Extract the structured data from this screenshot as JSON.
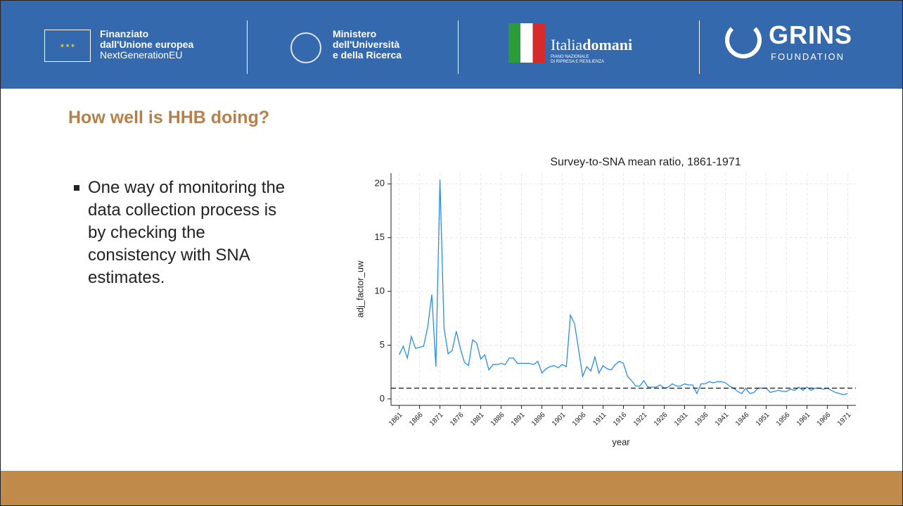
{
  "header": {
    "eu": [
      "Finanziato",
      "dall'Unione europea",
      "NextGenerationEU"
    ],
    "ministry": [
      "Ministero",
      "dell'Università",
      "e della Ricerca"
    ],
    "italiadomani": {
      "light": "Italia",
      "bold": "domani",
      "sub": [
        "PIANO NAZIONALE",
        "DI RIPRESA E RESILIENZA"
      ]
    },
    "grins": {
      "name": "GRINS",
      "sub": "FOUNDATION"
    }
  },
  "slide": {
    "title": "How well is HHB doing?",
    "bullet": "One way of monitoring the data collection process is by checking the consistency with SNA estimates."
  },
  "chart_data": {
    "type": "line",
    "title": "Survey-to-SNA mean ratio, 1861-1971",
    "xlabel": "year",
    "ylabel": "adj_factor_uw",
    "color": "#2b8ce6",
    "grid": true,
    "hline": 1,
    "x": [
      1861,
      1862,
      1863,
      1864,
      1865,
      1866,
      1867,
      1868,
      1869,
      1870,
      1871,
      1872,
      1873,
      1874,
      1875,
      1876,
      1877,
      1878,
      1879,
      1880,
      1881,
      1882,
      1883,
      1884,
      1885,
      1886,
      1887,
      1888,
      1889,
      1890,
      1891,
      1892,
      1893,
      1894,
      1895,
      1896,
      1897,
      1898,
      1899,
      1900,
      1901,
      1902,
      1903,
      1904,
      1905,
      1906,
      1907,
      1908,
      1909,
      1910,
      1911,
      1912,
      1913,
      1914,
      1915,
      1916,
      1917,
      1918,
      1919,
      1920,
      1921,
      1922,
      1923,
      1924,
      1925,
      1926,
      1927,
      1928,
      1929,
      1930,
      1931,
      1932,
      1933,
      1934,
      1935,
      1936,
      1937,
      1938,
      1939,
      1940,
      1941,
      1942,
      1943,
      1944,
      1945,
      1946,
      1947,
      1948,
      1949,
      1950,
      1951,
      1952,
      1953,
      1954,
      1955,
      1956,
      1957,
      1958,
      1959,
      1960,
      1961,
      1962,
      1963,
      1964,
      1965,
      1966,
      1967,
      1968,
      1969,
      1970,
      1971
    ],
    "values": [
      4.1,
      4.9,
      3.8,
      5.8,
      4.7,
      4.8,
      4.9,
      6.7,
      9.7,
      3.0,
      20.4,
      6.6,
      4.2,
      4.5,
      6.3,
      4.7,
      3.4,
      3.1,
      5.5,
      5.2,
      3.7,
      4.1,
      2.7,
      3.2,
      3.2,
      3.3,
      3.2,
      3.8,
      3.8,
      3.3,
      3.3,
      3.3,
      3.3,
      3.2,
      3.5,
      2.4,
      2.8,
      3.0,
      3.1,
      2.9,
      3.2,
      3.0,
      7.8,
      7.0,
      4.6,
      2.1,
      3.0,
      2.6,
      3.9,
      2.4,
      3.1,
      2.8,
      2.7,
      3.2,
      3.5,
      3.3,
      2.1,
      1.7,
      1.2,
      1.2,
      1.7,
      1.1,
      1.1,
      1.1,
      1.3,
      1.0,
      1.1,
      1.4,
      1.2,
      1.2,
      1.4,
      1.3,
      1.3,
      0.5,
      1.4,
      1.4,
      1.6,
      1.5,
      1.6,
      1.6,
      1.5,
      1.2,
      1.0,
      0.7,
      0.5,
      1.0,
      0.5,
      0.6,
      1.0,
      1.0,
      1.0,
      0.6,
      0.7,
      0.8,
      0.7,
      0.7,
      0.9,
      0.8,
      1.1,
      0.8,
      1.1,
      0.8,
      1.0,
      1.0,
      0.9,
      1.0,
      0.8,
      0.6,
      0.5,
      0.4,
      0.5
    ],
    "xlim": [
      1859,
      1973
    ],
    "xticks": [
      1861,
      1866,
      1871,
      1876,
      1881,
      1886,
      1891,
      1896,
      1901,
      1906,
      1911,
      1916,
      1921,
      1926,
      1931,
      1936,
      1941,
      1946,
      1951,
      1956,
      1961,
      1966,
      1971
    ],
    "ylim": [
      -0.6,
      21
    ],
    "yticks": [
      0,
      5,
      10,
      15,
      20
    ]
  }
}
